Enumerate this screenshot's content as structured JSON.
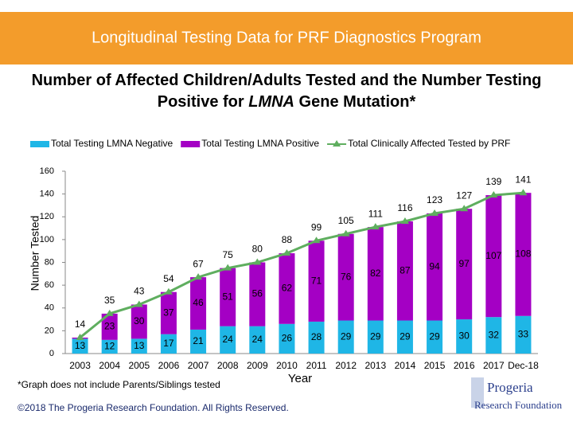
{
  "header": {
    "title": "Longitudinal Testing Data for PRF Diagnostics Program"
  },
  "subtitle": [
    "Number of Affected Children/Adults Tested and the Number Testing",
    "Positive for ",
    "LMNA",
    " Gene Mutation*"
  ],
  "chart_data": {
    "type": "stacked-bar-line",
    "categories": [
      "2003",
      "2004",
      "2005",
      "2006",
      "2007",
      "2008",
      "2009",
      "2010",
      "2011",
      "2012",
      "2013",
      "2014",
      "2015",
      "2016",
      "2017",
      "Dec-18"
    ],
    "series": [
      {
        "name": "Total Testing LMNA Negative",
        "color": "#1fb6e6",
        "kind": "bar",
        "values": [
          13,
          12,
          13,
          17,
          21,
          24,
          24,
          26,
          28,
          29,
          29,
          29,
          29,
          30,
          32,
          33
        ]
      },
      {
        "name": "Total Testing LMNA Positive",
        "color": "#a400c4",
        "kind": "bar",
        "values": [
          1,
          23,
          30,
          37,
          46,
          51,
          56,
          62,
          71,
          76,
          82,
          87,
          94,
          97,
          107,
          108
        ],
        "value_labels": [
          null,
          "23",
          "30",
          "37",
          "46",
          "51",
          "56",
          "62",
          "71",
          "76",
          "82",
          "87",
          "94",
          "97",
          "107",
          "108"
        ]
      },
      {
        "name": "Total Clinically Affected Tested by PRF",
        "color": "#5fae5f",
        "kind": "line",
        "values": [
          14,
          35,
          43,
          54,
          67,
          75,
          80,
          88,
          99,
          105,
          111,
          116,
          123,
          127,
          139,
          141
        ]
      }
    ],
    "ylabel": "Number Tested",
    "xlabel": "Year",
    "ylim": [
      0,
      160
    ],
    "yticks": [
      0,
      20,
      40,
      60,
      80,
      100,
      120,
      140,
      160
    ],
    "legend": "top",
    "grid": false
  },
  "footnote": "*Graph does not include Parents/Siblings tested",
  "copyright": "©2018 The Progeria Research Foundation. All Rights Reserved.",
  "logo": [
    "Progeria",
    "Research Foundation"
  ]
}
